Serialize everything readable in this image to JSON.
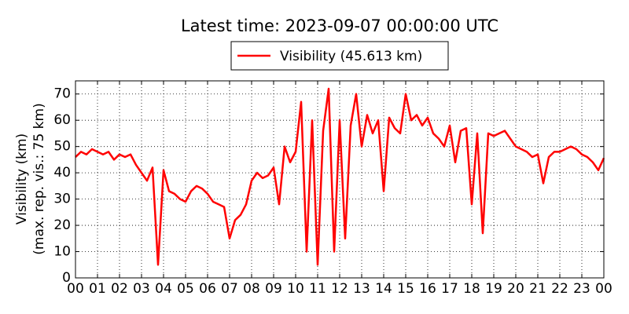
{
  "chart_data": {
    "type": "line",
    "title": "Latest time: 2023-09-07 00:00:00 UTC",
    "y_label": [
      "Visibility (km)",
      "(max. rep. vis.: 75 km)"
    ],
    "x": [
      0,
      0.25,
      0.5,
      0.75,
      1,
      1.25,
      1.5,
      1.75,
      2,
      2.25,
      2.5,
      2.75,
      3,
      3.25,
      3.5,
      3.75,
      4,
      4.25,
      4.5,
      4.75,
      5,
      5.25,
      5.5,
      5.75,
      6,
      6.25,
      6.5,
      6.75,
      7,
      7.25,
      7.5,
      7.75,
      8,
      8.25,
      8.5,
      8.75,
      9,
      9.25,
      9.5,
      9.75,
      10,
      10.25,
      10.5,
      10.75,
      11,
      11.25,
      11.5,
      11.75,
      12,
      12.25,
      12.5,
      12.75,
      13,
      13.25,
      13.5,
      13.75,
      14,
      14.25,
      14.5,
      14.75,
      15,
      15.25,
      15.5,
      15.75,
      16,
      16.25,
      16.5,
      16.75,
      17,
      17.25,
      17.5,
      17.75,
      18,
      18.25,
      18.5,
      18.75,
      19,
      19.25,
      19.5,
      19.75,
      20,
      20.25,
      20.5,
      20.75,
      21,
      21.25,
      21.5,
      21.75,
      22,
      22.25,
      22.5,
      22.75,
      23,
      23.25,
      23.5,
      23.75,
      24
    ],
    "series": [
      {
        "name": "Visibility (45.613 km)",
        "color": "#ff0000",
        "values": [
          46,
          48,
          47,
          49,
          48,
          47,
          48,
          45,
          47,
          46,
          47,
          43,
          40,
          37,
          42,
          5,
          41,
          33,
          32,
          30,
          29,
          33,
          35,
          34,
          32,
          29,
          28,
          27,
          15,
          22,
          24,
          28,
          37,
          40,
          38,
          39,
          42,
          28,
          50,
          44,
          48,
          67,
          10,
          60,
          5,
          56,
          72,
          10,
          60,
          15,
          58,
          70,
          50,
          62,
          55,
          60,
          33,
          61,
          57,
          55,
          70,
          60,
          62,
          58,
          61,
          55,
          53,
          50,
          58,
          44,
          56,
          57,
          28,
          55,
          17,
          55,
          54,
          55,
          56,
          53,
          50,
          49,
          48,
          46,
          47,
          36,
          46,
          48,
          48,
          49,
          50,
          49,
          47,
          46,
          44,
          41,
          45.613
        ]
      }
    ],
    "xlim": [
      0,
      24
    ],
    "xticks": [
      {
        "value": 0,
        "label": "00"
      },
      {
        "value": 1,
        "label": "01"
      },
      {
        "value": 2,
        "label": "02"
      },
      {
        "value": 3,
        "label": "03"
      },
      {
        "value": 4,
        "label": "04"
      },
      {
        "value": 5,
        "label": "05"
      },
      {
        "value": 6,
        "label": "06"
      },
      {
        "value": 7,
        "label": "07"
      },
      {
        "value": 8,
        "label": "08"
      },
      {
        "value": 9,
        "label": "09"
      },
      {
        "value": 10,
        "label": "10"
      },
      {
        "value": 11,
        "label": "11"
      },
      {
        "value": 12,
        "label": "12"
      },
      {
        "value": 13,
        "label": "13"
      },
      {
        "value": 14,
        "label": "14"
      },
      {
        "value": 15,
        "label": "15"
      },
      {
        "value": 16,
        "label": "16"
      },
      {
        "value": 17,
        "label": "17"
      },
      {
        "value": 18,
        "label": "18"
      },
      {
        "value": 19,
        "label": "19"
      },
      {
        "value": 20,
        "label": "20"
      },
      {
        "value": 21,
        "label": "21"
      },
      {
        "value": 22,
        "label": "22"
      },
      {
        "value": 23,
        "label": "23"
      },
      {
        "value": 24,
        "label": "00"
      }
    ],
    "ylim": [
      0,
      75
    ],
    "yticks": [
      0,
      10,
      20,
      30,
      40,
      50,
      60,
      70
    ],
    "grid": true
  }
}
